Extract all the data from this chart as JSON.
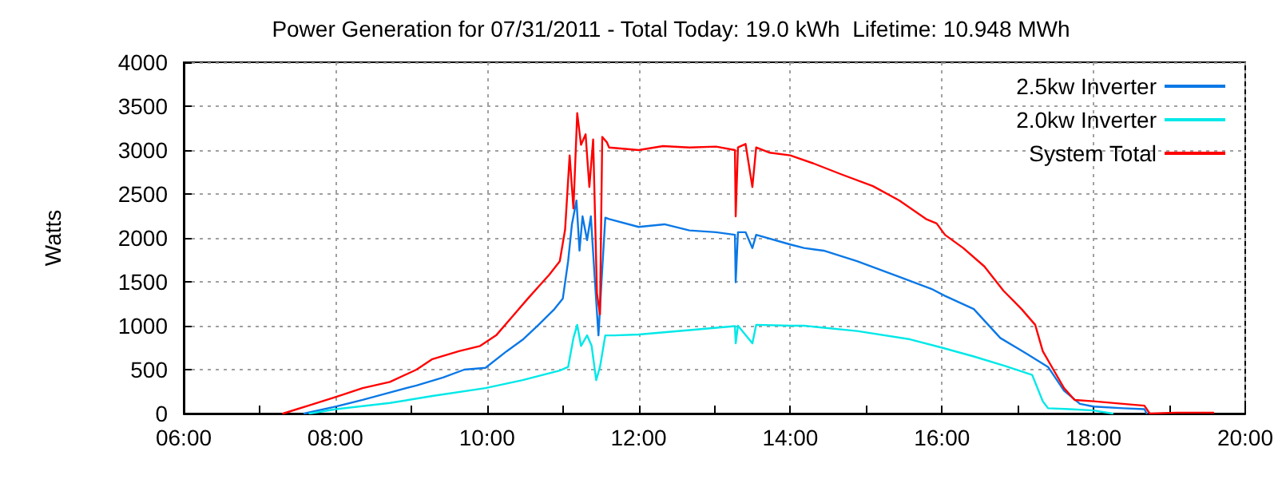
{
  "chart_data": {
    "type": "line",
    "title": "Power Generation for 07/31/2011 - Total Today: 19.0 kWh  Lifetime: 10.948 MWh",
    "ylabel": "Watts",
    "xlim": [
      6,
      20
    ],
    "xticks": [
      {
        "value": 6,
        "label": "06:00"
      },
      {
        "value": 7,
        "label": null
      },
      {
        "value": 8,
        "label": "08:00"
      },
      {
        "value": 9,
        "label": null
      },
      {
        "value": 10,
        "label": "10:00"
      },
      {
        "value": 11,
        "label": null
      },
      {
        "value": 12,
        "label": "12:00"
      },
      {
        "value": 13,
        "label": null
      },
      {
        "value": 14,
        "label": "14:00"
      },
      {
        "value": 15,
        "label": null
      },
      {
        "value": 16,
        "label": "16:00"
      },
      {
        "value": 17,
        "label": null
      },
      {
        "value": 18,
        "label": "18:00"
      },
      {
        "value": 19,
        "label": null
      },
      {
        "value": 20,
        "label": "20:00"
      }
    ],
    "ylim": [
      0,
      4000
    ],
    "yticks": [
      0,
      500,
      1000,
      1500,
      2000,
      2500,
      3000,
      3500,
      4000
    ],
    "grid": true,
    "legend": "top right",
    "marker": "none",
    "line_style": "solid",
    "series": [
      {
        "name": "2.5kw Inverter",
        "color": "#0a78e6",
        "x": [
          7.59,
          8.01,
          8.36,
          8.72,
          9.07,
          9.42,
          9.7,
          9.98,
          10.26,
          10.47,
          10.68,
          10.89,
          11.0,
          11.07,
          11.12,
          11.18,
          11.22,
          11.26,
          11.32,
          11.37,
          11.42,
          11.47,
          11.51,
          11.56,
          11.61,
          12.0,
          12.34,
          12.67,
          13.02,
          13.27,
          13.28,
          13.31,
          13.41,
          13.5,
          13.55,
          14.0,
          14.18,
          14.44,
          14.88,
          15.44,
          15.86,
          16.04,
          16.42,
          16.77,
          17.12,
          17.4,
          17.61,
          17.82,
          18.0,
          18.39,
          18.67,
          18.7
        ],
        "values": [
          0,
          80,
          155,
          240,
          320,
          410,
          500,
          520,
          710,
          840,
          1010,
          1190,
          1310,
          1735,
          2155,
          2425,
          1855,
          2245,
          1975,
          2245,
          1555,
          890,
          1495,
          2230,
          2215,
          2125,
          2155,
          2085,
          2065,
          2035,
          1495,
          2065,
          2065,
          1885,
          2035,
          1925,
          1885,
          1855,
          1735,
          1555,
          1420,
          1340,
          1190,
          860,
          680,
          530,
          260,
          110,
          80,
          60,
          50,
          0
        ]
      },
      {
        "name": "2.0kw Inverter",
        "color": "#00e8e8",
        "x": [
          7.66,
          8.01,
          8.72,
          9.28,
          9.98,
          10.47,
          10.96,
          11.07,
          11.14,
          11.19,
          11.24,
          11.32,
          11.38,
          11.44,
          11.49,
          11.56,
          11.68,
          12.0,
          12.67,
          13.27,
          13.28,
          13.31,
          13.5,
          13.55,
          14.0,
          14.18,
          14.88,
          15.58,
          16.0,
          16.42,
          16.84,
          17.19,
          17.26,
          17.33,
          17.4,
          17.68,
          18.0,
          18.25
        ],
        "values": [
          0,
          50,
          120,
          200,
          290,
          380,
          490,
          530,
          860,
          1010,
          770,
          890,
          770,
          380,
          530,
          890,
          890,
          900,
          950,
          995,
          800,
          1000,
          800,
          1010,
          1000,
          1000,
          940,
          845,
          750,
          650,
          540,
          440,
          290,
          140,
          60,
          50,
          35,
          0
        ]
      },
      {
        "name": "System Total",
        "color": "#ff0000",
        "x": [
          7.31,
          7.66,
          8.01,
          8.36,
          8.72,
          9.07,
          9.28,
          9.63,
          9.91,
          10.12,
          10.33,
          10.54,
          10.68,
          10.82,
          10.96,
          11.03,
          11.09,
          11.14,
          11.19,
          11.24,
          11.3,
          11.35,
          11.4,
          11.45,
          11.49,
          11.52,
          11.58,
          11.61,
          12.0,
          12.32,
          12.67,
          13.02,
          13.27,
          13.28,
          13.31,
          13.41,
          13.5,
          13.55,
          13.73,
          14.0,
          14.3,
          14.67,
          15.09,
          15.44,
          15.79,
          15.93,
          16.04,
          16.28,
          16.56,
          16.81,
          17.05,
          17.23,
          17.33,
          17.47,
          17.61,
          17.75,
          18.0,
          18.39,
          18.67,
          18.74,
          19.09,
          19.58
        ],
        "values": [
          0,
          95,
          190,
          290,
          360,
          500,
          620,
          710,
          770,
          890,
          1100,
          1310,
          1445,
          1580,
          1735,
          2095,
          2940,
          2335,
          3420,
          3060,
          3180,
          2580,
          3120,
          1370,
          1130,
          3150,
          3090,
          3030,
          3000,
          3045,
          3030,
          3040,
          3000,
          2245,
          3030,
          3070,
          2580,
          3030,
          2970,
          2940,
          2850,
          2725,
          2590,
          2425,
          2215,
          2165,
          2035,
          1885,
          1675,
          1400,
          1190,
          1010,
          710,
          500,
          290,
          155,
          140,
          110,
          90,
          0,
          10,
          10
        ]
      }
    ]
  }
}
